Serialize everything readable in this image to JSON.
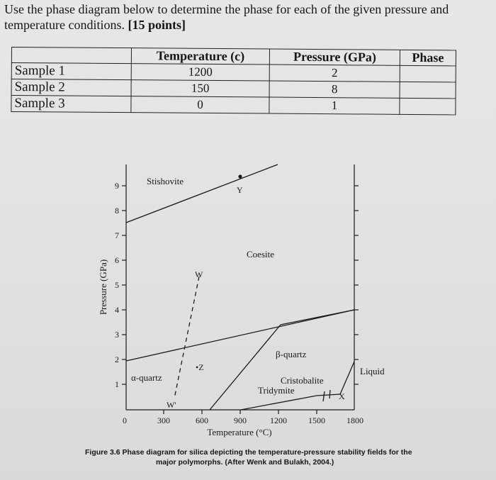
{
  "question": {
    "line1": "Use the phase diagram below to determine the phase for each of the given pressure and",
    "line2": "temperature conditions.",
    "points": "[15 points]"
  },
  "table": {
    "headers": [
      "",
      "Temperature (c)",
      "Pressure (GPa)",
      "Phase"
    ],
    "rows": [
      {
        "label": "Sample 1",
        "temperature": "1200",
        "pressure": "2",
        "phase": ""
      },
      {
        "label": "Sample 2",
        "temperature": "150",
        "pressure": "8",
        "phase": ""
      },
      {
        "label": "Sample 3",
        "temperature": "0",
        "pressure": "1",
        "phase": ""
      }
    ]
  },
  "diagram": {
    "ylabel": "Pressure (GPa)",
    "xlabel": "Temperature (°C)",
    "yticks": [
      "1",
      "2",
      "3",
      "4",
      "5",
      "6",
      "7",
      "8",
      "9"
    ],
    "xticks": [
      "0",
      "300",
      "600",
      "900",
      "1200",
      "1500",
      "1800"
    ],
    "phases": {
      "stishovite": "Stishovite",
      "coesite": "Coesite",
      "beta_quartz": "β-quartz",
      "alpha_quartz": "α-quartz",
      "cristobalite": "Cristobalite",
      "tridymite": "Tridymite",
      "liquid": "Liquid"
    },
    "points": {
      "y": "Y",
      "w": "W",
      "w_prime": "W'",
      "z": "•Z",
      "x": "X"
    }
  },
  "caption": {
    "line1": "Figure 3.6 Phase diagram for silica depicting the temperature-pressure stability fields for the",
    "line2": "major polymorphs. (After Wenk and Bulakh, 2004.)"
  }
}
